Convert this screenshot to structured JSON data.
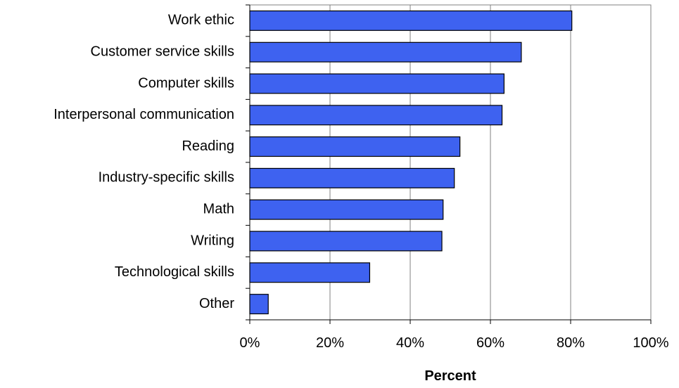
{
  "chart_data": {
    "type": "bar",
    "orientation": "horizontal",
    "title": "",
    "xlabel": "Percent",
    "ylabel": "",
    "categories": [
      "Work ethic",
      "Customer service skills",
      "Computer skills",
      "Interpersonal communication",
      "Reading",
      "Industry-specific skills",
      "Math",
      "Writing",
      "Technological skills",
      "Other"
    ],
    "values": [
      80.3,
      67.7,
      63.4,
      62.9,
      52.4,
      51.0,
      48.2,
      47.9,
      29.9,
      4.6
    ],
    "xlim": [
      0,
      100
    ],
    "xticks": [
      0,
      20,
      40,
      60,
      80,
      100
    ],
    "xtick_labels": [
      "0%",
      "20%",
      "40%",
      "60%",
      "80%",
      "100%"
    ],
    "grid": "vertical",
    "legend": "none",
    "bar_color": "#3E62F0",
    "bar_edge_color": "#000000"
  }
}
